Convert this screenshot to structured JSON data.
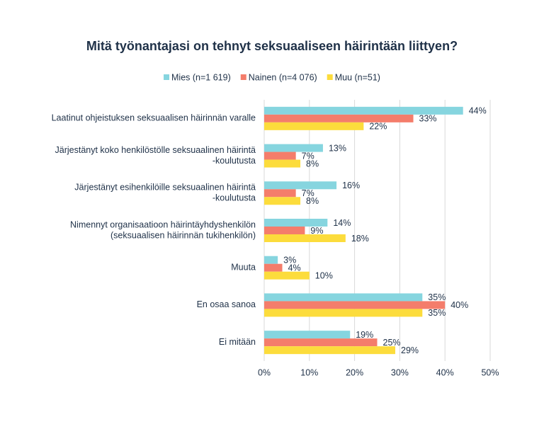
{
  "chart_data": {
    "type": "hbar",
    "title": "Mitä työnantajasi on tehnyt seksuaaliseen häirintään liittyen?",
    "categories": [
      [
        "Laatinut ohjeistuksen seksuaalisen häirinnän varalle"
      ],
      [
        "Järjestänyt koko henkilöstölle seksuaalinen häirintä",
        "-koulutusta"
      ],
      [
        "Järjestänyt esihenkilöille seksuaalinen häirintä",
        "-koulutusta"
      ],
      [
        "Nimennyt organisaatioon häirintäyhdyshenkilön",
        "(seksuaalisen häirinnän tukihenkilön)"
      ],
      [
        "Muuta"
      ],
      [
        "En osaa sanoa"
      ],
      [
        "Ei mitään"
      ]
    ],
    "series": [
      {
        "name": "Mies (n=1 619)",
        "color": "#86d5df",
        "values": [
          44,
          13,
          16,
          14,
          3,
          35,
          19
        ],
        "value_labels": [
          "44%",
          "13%",
          "16%",
          "14%",
          "3%",
          "35%",
          "19%"
        ]
      },
      {
        "name": "Nainen (n=4 076)",
        "color": "#f47d6b",
        "values": [
          33,
          7,
          7,
          9,
          4,
          40,
          25
        ],
        "value_labels": [
          "33%",
          "7%",
          "7%",
          "9%",
          "4%",
          "40%",
          "25%"
        ]
      },
      {
        "name": "Muu (n=51)",
        "color": "#fcdc3c",
        "values": [
          22,
          8,
          8,
          18,
          10,
          35,
          29
        ],
        "value_labels": [
          "22%",
          "8%",
          "8%",
          "18%",
          "10%",
          "35%",
          "29%"
        ]
      }
    ],
    "xlim": [
      0,
      50
    ],
    "xticks": [
      {
        "value": 0,
        "label": "0%"
      },
      {
        "value": 10,
        "label": "10%"
      },
      {
        "value": 20,
        "label": "20%"
      },
      {
        "value": 30,
        "label": "30%"
      },
      {
        "value": 40,
        "label": "40%"
      },
      {
        "value": 50,
        "label": "50%"
      }
    ],
    "grid": true,
    "legend": "top"
  }
}
